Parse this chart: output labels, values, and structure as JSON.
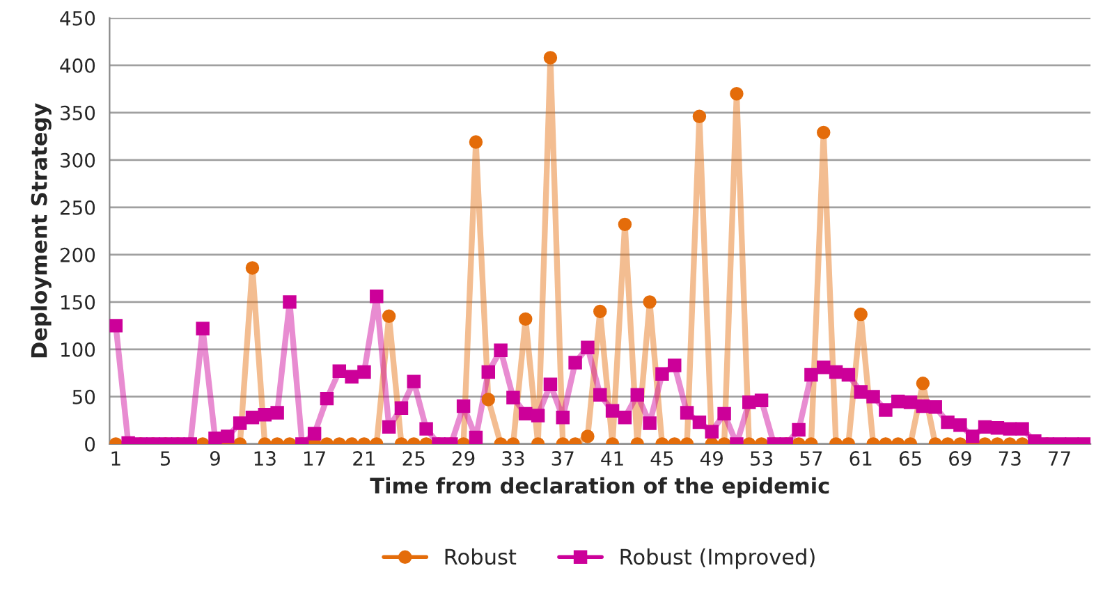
{
  "chart_data": {
    "type": "line",
    "xlabel": "Time from declaration of the epidemic",
    "ylabel": "Deployment Strategy",
    "categories": [
      "1",
      null,
      null,
      null,
      "5",
      null,
      null,
      null,
      "9",
      null,
      null,
      null,
      "13",
      null,
      null,
      null,
      "17",
      null,
      null,
      null,
      "21",
      null,
      null,
      null,
      "25",
      null,
      null,
      null,
      "29",
      null,
      null,
      null,
      "33",
      null,
      null,
      null,
      "37",
      null,
      null,
      null,
      "41",
      null,
      null,
      null,
      "45",
      null,
      null,
      null,
      "49",
      null,
      null,
      null,
      "53",
      null,
      null,
      null,
      "57",
      null,
      null,
      null,
      "61",
      null,
      null,
      null,
      "65",
      null,
      null,
      null,
      "69",
      null,
      null,
      null,
      "73",
      null,
      null,
      null,
      "77",
      null,
      null
    ],
    "series": [
      {
        "name": "Robust",
        "color": "#e46c0a",
        "marker": "circle",
        "values": [
          0,
          0,
          0,
          0,
          0,
          0,
          0,
          0,
          0,
          0,
          0,
          186,
          0,
          0,
          0,
          0,
          0,
          0,
          0,
          0,
          0,
          0,
          135,
          0,
          0,
          0,
          0,
          0,
          0,
          319,
          47,
          0,
          0,
          132,
          0,
          408,
          0,
          0,
          8,
          140,
          0,
          232,
          0,
          150,
          0,
          0,
          0,
          346,
          0,
          0,
          370,
          0,
          0,
          0,
          0,
          0,
          0,
          329,
          0,
          0,
          137,
          0,
          0,
          0,
          0,
          64,
          0,
          0,
          0,
          0,
          0,
          0,
          0,
          0,
          0,
          0,
          null,
          null,
          null
        ]
      },
      {
        "name": "Robust (Improved)",
        "color": "#cc0099",
        "marker": "square",
        "values": [
          125,
          1,
          0,
          0,
          0,
          0,
          0,
          122,
          6,
          8,
          22,
          28,
          31,
          33,
          150,
          0,
          11,
          48,
          77,
          71,
          76,
          156,
          18,
          38,
          66,
          16,
          0,
          0,
          40,
          7,
          76,
          99,
          49,
          32,
          30,
          63,
          28,
          86,
          102,
          52,
          35,
          28,
          52,
          22,
          74,
          83,
          33,
          23,
          13,
          32,
          0,
          44,
          46,
          0,
          0,
          15,
          73,
          81,
          76,
          73,
          55,
          50,
          36,
          45,
          44,
          40,
          39,
          23,
          20,
          8,
          18,
          17,
          16,
          16,
          3,
          0,
          0,
          0,
          0
        ]
      }
    ],
    "ylim": [
      0,
      450
    ],
    "yticks": [
      0,
      50,
      100,
      150,
      200,
      250,
      300,
      350,
      400,
      450
    ],
    "grid": "y",
    "legend": "bottom"
  }
}
